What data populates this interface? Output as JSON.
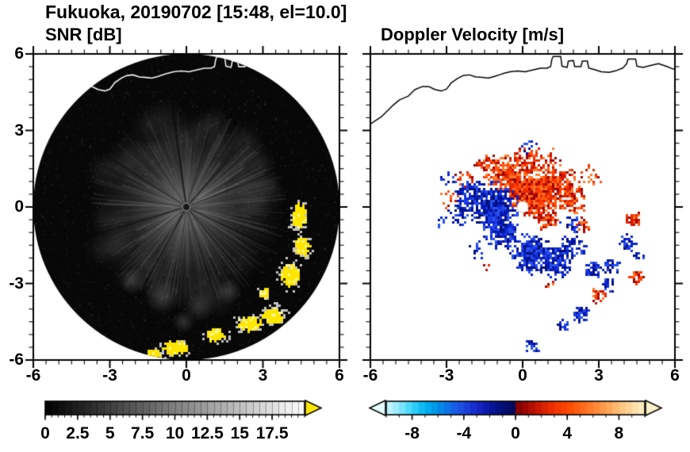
{
  "figure": {
    "title": "Fukuoka, 20190702 [15:48, el=10.0]",
    "background": "#ffffff",
    "text_color": "#000000"
  },
  "chart_data": [
    {
      "type": "heatmap",
      "title": "SNR [dB]",
      "xlim": [
        -6,
        6
      ],
      "ylim": [
        -6,
        6
      ],
      "xticks": [
        -6,
        -3,
        0,
        3,
        6
      ],
      "yticks": [
        6,
        3,
        0,
        -3,
        -6
      ],
      "xtick_labels": [
        "-6",
        "-3",
        "0",
        "3",
        "6"
      ],
      "ytick_labels": [
        "6",
        "3",
        "0",
        "-3",
        "-6"
      ],
      "minor_tick_step": 0.5,
      "grid": false,
      "description": "PPI radar scan: dark disc of radius 6 centered on the radar, grainy gray echo fan out to ~4 with thin dark beam-blockage spokes, saturated yellow high-SNR patches in the lower-right and bottom sectors, white coastline overlay near the top.",
      "disc": {
        "radius": 6,
        "background": "#070707",
        "echo_color": "#a0a0a0",
        "echo_extent": 3.9,
        "spoke_angles_deg": [
          8,
          26,
          50,
          72,
          97,
          118,
          141,
          163,
          188,
          213,
          238,
          262,
          287,
          312,
          338
        ],
        "center_dot_radius": 0.14
      },
      "bottom_clouds": [
        {
          "x": -0.9,
          "y": -3.5,
          "r": 0.7
        },
        {
          "x": 0.5,
          "y": -3.9,
          "r": 0.6
        },
        {
          "x": -2.1,
          "y": -2.9,
          "r": 0.55
        },
        {
          "x": 1.7,
          "y": -3.3,
          "r": 0.5
        },
        {
          "x": -0.1,
          "y": -4.5,
          "r": 0.45
        }
      ],
      "high_snr_patches": [
        {
          "x": 4.4,
          "y": -0.3,
          "rx": 0.32,
          "ry": 0.6
        },
        {
          "x": 4.45,
          "y": -1.55,
          "rx": 0.33,
          "ry": 0.42
        },
        {
          "x": 4.0,
          "y": -2.6,
          "rx": 0.42,
          "ry": 0.5
        },
        {
          "x": 3.0,
          "y": -3.3,
          "rx": 0.26,
          "ry": 0.26
        },
        {
          "x": 3.4,
          "y": -4.2,
          "rx": 0.5,
          "ry": 0.38
        },
        {
          "x": 2.4,
          "y": -4.55,
          "rx": 0.5,
          "ry": 0.33
        },
        {
          "x": 1.1,
          "y": -5.0,
          "rx": 0.45,
          "ry": 0.3
        },
        {
          "x": -0.5,
          "y": -5.5,
          "rx": 0.55,
          "ry": 0.33
        },
        {
          "x": -1.3,
          "y": -5.75,
          "rx": 0.3,
          "ry": 0.22
        }
      ],
      "patch_color": "#ffe600",
      "patch_halo_color": "#d9d9d9",
      "colorbar": {
        "min": 0,
        "max": 20,
        "tick_values": [
          0,
          2.5,
          5,
          7.5,
          10,
          12.5,
          15,
          17.5
        ],
        "tick_labels": [
          "0",
          "2.5",
          "5",
          "7.5",
          "10",
          "12.5",
          "15",
          "17.5"
        ],
        "minor_step": 0.5,
        "segment_step": 0.5,
        "stops": [
          [
            0,
            "#000000"
          ],
          [
            1,
            "#ffffff"
          ]
        ],
        "over_color": "#ffe600",
        "arrow_left": false,
        "arrow_right": true
      }
    },
    {
      "type": "heatmap",
      "title": "Doppler Velocity [m/s]",
      "xlim": [
        -6,
        6
      ],
      "ylim": [
        -6,
        6
      ],
      "xticks": [
        -6,
        -3,
        0,
        3,
        6
      ],
      "yticks": [
        6,
        3,
        0,
        -3,
        -6
      ],
      "xtick_labels": [
        "-6",
        "-3",
        "0",
        "3",
        "6"
      ],
      "ytick_labels": [],
      "minor_tick_step": 0.5,
      "grid": false,
      "description": "Doppler velocity field on white background: approaching air (blue, negative) west and south of the radar, receding air (red-orange, positive) north and east, scattered echo patches to the southeast, black coastline near the top, white dot at the radar position.",
      "radar_dot": {
        "x": 0,
        "y": 0,
        "r": 0.22,
        "color": "#ffffff",
        "edge": "#c8c8c8"
      },
      "negative_palette": [
        "#000d7a",
        "#0015a8",
        "#0a24cc",
        "#1b3ae0",
        "#2a52ee"
      ],
      "positive_palette": [
        "#9c0000",
        "#c81400",
        "#e62800",
        "#ff3c00",
        "#ff5a14",
        "#ff7a28"
      ],
      "velocity_patches": [
        {
          "x": 0.45,
          "y": 0.55,
          "r": 1.1,
          "sign": "pos",
          "fill": 0.95
        },
        {
          "x": -0.55,
          "y": 1.25,
          "r": 0.9,
          "sign": "pos",
          "fill": 0.9
        },
        {
          "x": 1.35,
          "y": 0.9,
          "r": 0.8,
          "sign": "pos",
          "fill": 0.8
        },
        {
          "x": 1.95,
          "y": 0.3,
          "r": 0.6,
          "sign": "pos",
          "fill": 0.6
        },
        {
          "x": -1.45,
          "y": 1.7,
          "r": 0.55,
          "sign": "pos",
          "fill": 0.55
        },
        {
          "x": 0.2,
          "y": 1.95,
          "r": 0.6,
          "sign": "pos",
          "fill": 0.5
        },
        {
          "x": 1.1,
          "y": 1.8,
          "r": 0.5,
          "sign": "pos",
          "fill": 0.45
        },
        {
          "x": -2.3,
          "y": 1.15,
          "r": 0.45,
          "sign": "pos",
          "fill": 0.4
        },
        {
          "x": -2.95,
          "y": 0.35,
          "r": 0.4,
          "sign": "pos",
          "fill": 0.3
        },
        {
          "x": 2.6,
          "y": 1.2,
          "r": 0.45,
          "sign": "pos",
          "fill": 0.35
        },
        {
          "x": 0.95,
          "y": -0.4,
          "r": 0.5,
          "sign": "pos",
          "fill": 0.7
        },
        {
          "x": 2.35,
          "y": -0.55,
          "r": 0.4,
          "sign": "pos",
          "fill": 0.35
        },
        {
          "x": 4.35,
          "y": -0.45,
          "r": 0.35,
          "sign": "pos",
          "fill": 0.9
        },
        {
          "x": 4.4,
          "y": -2.75,
          "r": 0.28,
          "sign": "pos",
          "fill": 0.85
        },
        {
          "x": 2.95,
          "y": -3.35,
          "r": 0.4,
          "sign": "pos",
          "fill": 0.6
        },
        {
          "x": -1.5,
          "y": -2.3,
          "r": 0.25,
          "sign": "pos",
          "fill": 0.3
        },
        {
          "x": 1.1,
          "y": -3.0,
          "r": 0.28,
          "sign": "pos",
          "fill": 0.3
        },
        {
          "x": -1.15,
          "y": 0.05,
          "r": 1.0,
          "sign": "neg",
          "fill": 0.95
        },
        {
          "x": -2.05,
          "y": 0.45,
          "r": 0.7,
          "sign": "neg",
          "fill": 0.8
        },
        {
          "x": -2.6,
          "y": -0.3,
          "r": 0.5,
          "sign": "neg",
          "fill": 0.5
        },
        {
          "x": -0.85,
          "y": -0.95,
          "r": 0.7,
          "sign": "neg",
          "fill": 0.85
        },
        {
          "x": 0.3,
          "y": -1.75,
          "r": 0.85,
          "sign": "neg",
          "fill": 0.9
        },
        {
          "x": 1.25,
          "y": -2.05,
          "r": 0.7,
          "sign": "neg",
          "fill": 0.85
        },
        {
          "x": 2.0,
          "y": -1.5,
          "r": 0.55,
          "sign": "neg",
          "fill": 0.6
        },
        {
          "x": 0.2,
          "y": 2.45,
          "r": 0.35,
          "sign": "neg",
          "fill": 0.3
        },
        {
          "x": -2.95,
          "y": 1.2,
          "r": 0.3,
          "sign": "neg",
          "fill": 0.3
        },
        {
          "x": -3.3,
          "y": -0.6,
          "r": 0.3,
          "sign": "neg",
          "fill": 0.3
        },
        {
          "x": -1.8,
          "y": -1.6,
          "r": 0.4,
          "sign": "neg",
          "fill": 0.4
        },
        {
          "x": 1.85,
          "y": -0.65,
          "r": 0.4,
          "sign": "neg",
          "fill": 0.5
        },
        {
          "x": 2.75,
          "y": -2.4,
          "r": 0.45,
          "sign": "neg",
          "fill": 0.6
        },
        {
          "x": 3.45,
          "y": -2.3,
          "r": 0.35,
          "sign": "neg",
          "fill": 0.55
        },
        {
          "x": 3.3,
          "y": -3.0,
          "r": 0.3,
          "sign": "neg",
          "fill": 0.5
        },
        {
          "x": 2.3,
          "y": -4.15,
          "r": 0.4,
          "sign": "neg",
          "fill": 0.8
        },
        {
          "x": 1.55,
          "y": -4.6,
          "r": 0.28,
          "sign": "neg",
          "fill": 0.6
        },
        {
          "x": 0.3,
          "y": -5.45,
          "r": 0.3,
          "sign": "neg",
          "fill": 0.8
        },
        {
          "x": 4.15,
          "y": -1.35,
          "r": 0.35,
          "sign": "neg",
          "fill": 0.8
        },
        {
          "x": 4.5,
          "y": -1.95,
          "r": 0.25,
          "sign": "neg",
          "fill": 0.6
        }
      ],
      "colorbar": {
        "min": -10,
        "max": 10,
        "tick_values": [
          -8,
          -4,
          0,
          4,
          8
        ],
        "tick_labels": [
          "-8",
          "-4",
          "0",
          "4",
          "8"
        ],
        "minor_step": 1,
        "segment_step": 0.5,
        "stops": [
          [
            0.0,
            "#d0f6ff"
          ],
          [
            0.05,
            "#8ce8ff"
          ],
          [
            0.1,
            "#3cd2fa"
          ],
          [
            0.15,
            "#00b4f0"
          ],
          [
            0.2,
            "#0090e6"
          ],
          [
            0.25,
            "#1468e6"
          ],
          [
            0.3,
            "#1e46dc"
          ],
          [
            0.35,
            "#1428c8"
          ],
          [
            0.4,
            "#0a14a0"
          ],
          [
            0.45,
            "#050e78"
          ],
          [
            0.499,
            "#040a56"
          ],
          [
            0.5,
            "#780000"
          ],
          [
            0.55,
            "#aa0a00"
          ],
          [
            0.6,
            "#d21e00"
          ],
          [
            0.65,
            "#f03200"
          ],
          [
            0.7,
            "#ff4600"
          ],
          [
            0.75,
            "#ff6414"
          ],
          [
            0.8,
            "#ff8232"
          ],
          [
            0.85,
            "#ffa050"
          ],
          [
            0.9,
            "#ffbe78"
          ],
          [
            0.95,
            "#ffd9a0"
          ],
          [
            1.0,
            "#ffefc8"
          ]
        ],
        "under_color": "#e6ffff",
        "over_color": "#fff2c8",
        "arrow_left": true,
        "arrow_right": true
      }
    }
  ],
  "coastline": [
    [
      -6.0,
      3.25
    ],
    [
      -5.55,
      3.55
    ],
    [
      -5.15,
      3.95
    ],
    [
      -4.85,
      4.2
    ],
    [
      -4.5,
      4.35
    ],
    [
      -4.25,
      4.6
    ],
    [
      -3.95,
      4.72
    ],
    [
      -3.7,
      4.72
    ],
    [
      -3.45,
      4.6
    ],
    [
      -3.2,
      4.55
    ],
    [
      -3.0,
      4.62
    ],
    [
      -2.8,
      4.88
    ],
    [
      -2.55,
      5.05
    ],
    [
      -2.35,
      5.15
    ],
    [
      -2.1,
      5.18
    ],
    [
      -1.85,
      5.1
    ],
    [
      -1.6,
      5.08
    ],
    [
      -1.35,
      5.05
    ],
    [
      -1.1,
      5.12
    ],
    [
      -0.8,
      5.22
    ],
    [
      -0.5,
      5.3
    ],
    [
      -0.2,
      5.33
    ],
    [
      0.1,
      5.3
    ],
    [
      0.4,
      5.37
    ],
    [
      0.7,
      5.44
    ],
    [
      0.95,
      5.44
    ],
    [
      1.1,
      5.5
    ],
    [
      1.15,
      5.78
    ],
    [
      1.2,
      5.9
    ],
    [
      1.5,
      5.9
    ],
    [
      1.55,
      5.52
    ],
    [
      1.75,
      5.47
    ],
    [
      1.8,
      5.72
    ],
    [
      2.0,
      5.74
    ],
    [
      2.05,
      5.5
    ],
    [
      2.3,
      5.5
    ],
    [
      2.35,
      5.72
    ],
    [
      2.55,
      5.72
    ],
    [
      2.6,
      5.45
    ],
    [
      2.85,
      5.38
    ],
    [
      3.1,
      5.3
    ],
    [
      3.4,
      5.28
    ],
    [
      3.7,
      5.35
    ],
    [
      3.95,
      5.45
    ],
    [
      4.1,
      5.62
    ],
    [
      4.15,
      5.8
    ],
    [
      4.45,
      5.8
    ],
    [
      4.5,
      5.52
    ],
    [
      4.75,
      5.47
    ],
    [
      5.05,
      5.55
    ],
    [
      5.35,
      5.62
    ],
    [
      5.65,
      5.52
    ],
    [
      5.9,
      5.42
    ],
    [
      6.0,
      5.4
    ]
  ]
}
